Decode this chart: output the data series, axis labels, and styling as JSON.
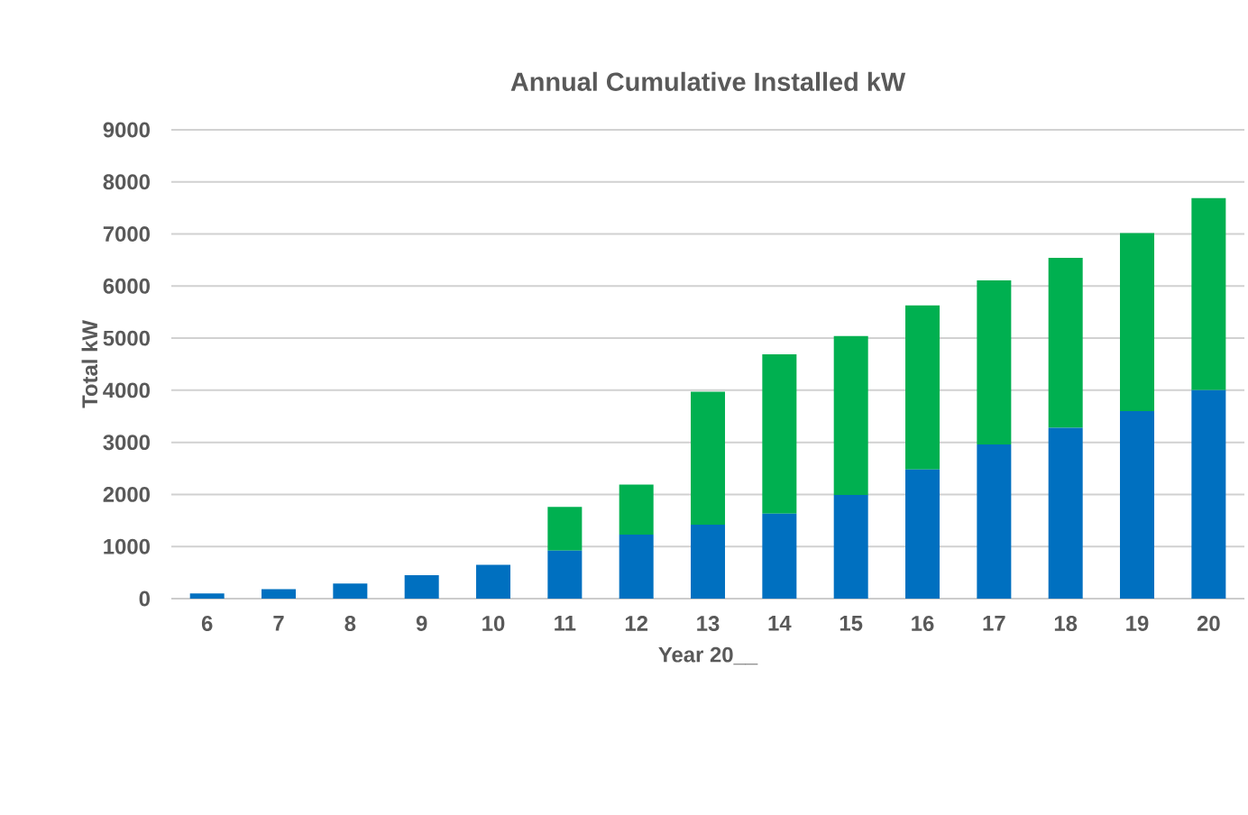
{
  "chart_data": {
    "type": "bar",
    "title": "Annual Cumulative Installed kW",
    "xlabel": "Year 20__",
    "ylabel": "Total kW",
    "categories": [
      "6",
      "7",
      "8",
      "9",
      "10",
      "11",
      "12",
      "13",
      "14",
      "15",
      "16",
      "17",
      "18",
      "19",
      "20"
    ],
    "stacked": true,
    "grid": "y",
    "legend": false,
    "ylim": [
      0,
      9000
    ],
    "yticks": [
      0,
      1000,
      2000,
      3000,
      4000,
      5000,
      6000,
      7000,
      8000,
      9000
    ],
    "series": [
      {
        "color": "#0070c0",
        "values": [
          100,
          180,
          290,
          450,
          650,
          920,
          1230,
          1420,
          1630,
          1990,
          2480,
          2960,
          3280,
          3600,
          4000
        ]
      },
      {
        "color": "#00b050",
        "values": [
          null,
          null,
          null,
          null,
          null,
          840,
          960,
          2550,
          3060,
          3050,
          3150,
          3150,
          3260,
          3420,
          3690
        ]
      }
    ]
  }
}
